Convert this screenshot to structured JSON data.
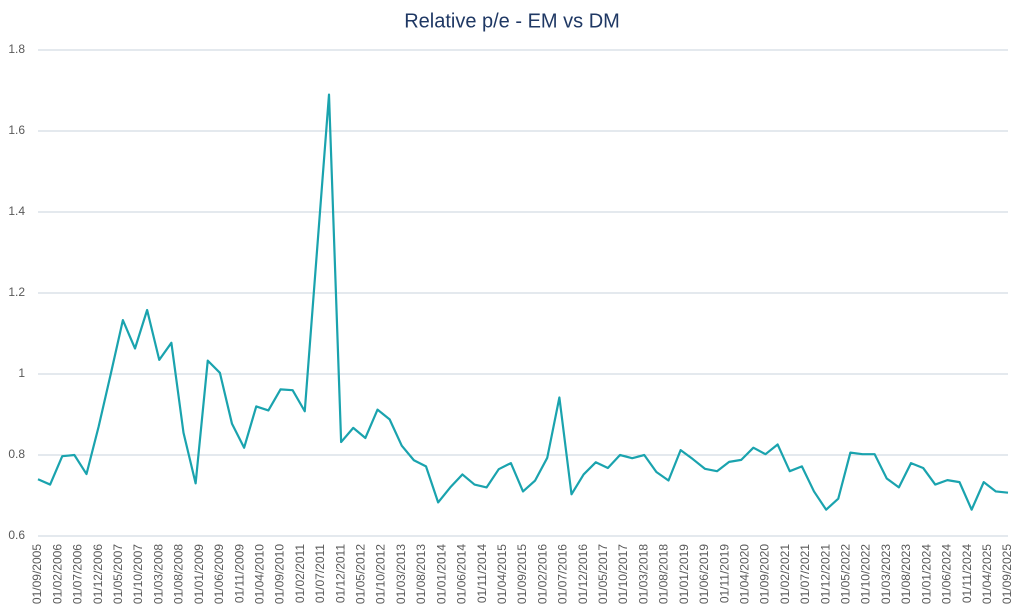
{
  "chart_data": {
    "type": "line",
    "title": "Relative p/e - EM vs DM",
    "x": [
      "01/09/2005",
      "01/12/2005",
      "01/03/2006",
      "01/06/2006",
      "01/09/2006",
      "01/12/2006",
      "01/03/2007",
      "01/06/2007",
      "01/09/2007",
      "01/12/2007",
      "01/03/2008",
      "01/06/2008",
      "01/09/2008",
      "01/12/2008",
      "01/03/2009",
      "01/06/2009",
      "01/09/2009",
      "01/12/2009",
      "01/03/2010",
      "01/06/2010",
      "01/09/2010",
      "01/12/2010",
      "01/03/2011",
      "01/06/2011",
      "01/09/2011",
      "01/12/2011",
      "01/03/2012",
      "01/06/2012",
      "01/09/2012",
      "01/12/2012",
      "01/03/2013",
      "01/06/2013",
      "01/09/2013",
      "01/12/2013",
      "01/03/2014",
      "01/06/2014",
      "01/09/2014",
      "01/12/2014",
      "01/03/2015",
      "01/06/2015",
      "01/09/2015",
      "01/12/2015",
      "01/03/2016",
      "01/06/2016",
      "01/09/2016",
      "01/12/2016",
      "01/03/2017",
      "01/06/2017",
      "01/09/2017",
      "01/12/2017",
      "01/03/2018",
      "01/06/2018",
      "01/09/2018",
      "01/12/2018",
      "01/03/2019",
      "01/06/2019",
      "01/09/2019",
      "01/12/2019",
      "01/03/2020",
      "01/06/2020",
      "01/09/2020",
      "01/12/2020",
      "01/03/2021",
      "01/06/2021",
      "01/09/2021",
      "01/12/2021",
      "01/03/2022",
      "01/06/2022",
      "01/09/2022",
      "01/12/2022",
      "01/03/2023",
      "01/06/2023",
      "01/09/2023",
      "01/12/2023",
      "01/03/2024",
      "01/06/2024",
      "01/09/2024",
      "01/12/2024",
      "01/03/2025",
      "01/06/2025",
      "01/09/2025"
    ],
    "series": [
      {
        "name": "Relative p/e",
        "color": "#1aa3ae",
        "values": [
          0.74,
          0.727,
          0.797,
          0.8,
          0.753,
          0.87,
          1.0,
          1.133,
          1.063,
          1.158,
          1.035,
          1.077,
          0.855,
          0.73,
          1.033,
          1.003,
          0.877,
          0.818,
          0.92,
          0.91,
          0.962,
          0.96,
          0.908,
          1.3,
          1.69,
          0.832,
          0.867,
          0.842,
          0.912,
          0.888,
          0.823,
          0.787,
          0.772,
          0.683,
          0.72,
          0.752,
          0.727,
          0.72,
          0.765,
          0.78,
          0.71,
          0.737,
          0.793,
          0.942,
          0.703,
          0.752,
          0.782,
          0.768,
          0.8,
          0.792,
          0.8,
          0.758,
          0.737,
          0.812,
          0.79,
          0.766,
          0.76,
          0.783,
          0.788,
          0.818,
          0.802,
          0.826,
          0.76,
          0.772,
          0.71,
          0.665,
          0.692,
          0.806,
          0.802,
          0.802,
          0.742,
          0.72,
          0.78,
          0.768,
          0.727,
          0.738,
          0.733,
          0.665,
          0.733,
          0.71,
          0.707
        ]
      }
    ],
    "xlim": [
      "01/09/2005",
      "01/09/2025"
    ],
    "xticks": [
      "01/09/2005",
      "01/02/2006",
      "01/07/2006",
      "01/12/2006",
      "01/05/2007",
      "01/10/2007",
      "01/03/2008",
      "01/08/2008",
      "01/01/2009",
      "01/06/2009",
      "01/11/2009",
      "01/04/2010",
      "01/09/2010",
      "01/02/2011",
      "01/07/2011",
      "01/12/2011",
      "01/05/2012",
      "01/10/2012",
      "01/03/2013",
      "01/08/2013",
      "01/01/2014",
      "01/06/2014",
      "01/11/2014",
      "01/04/2015",
      "01/09/2015",
      "01/02/2016",
      "01/07/2016",
      "01/12/2016",
      "01/05/2017",
      "01/10/2017",
      "01/03/2018",
      "01/08/2018",
      "01/01/2019",
      "01/06/2019",
      "01/11/2019",
      "01/04/2020",
      "01/09/2020",
      "01/02/2021",
      "01/07/2021",
      "01/12/2021",
      "01/05/2022",
      "01/10/2022",
      "01/03/2023",
      "01/08/2023",
      "01/01/2024",
      "01/06/2024",
      "01/11/2024",
      "01/04/2025",
      "01/09/2025"
    ],
    "ylim": [
      0.6,
      1.8
    ],
    "yticks": [
      0.6,
      0.8,
      1,
      1.2,
      1.4,
      1.6,
      1.8
    ],
    "grid": true
  }
}
